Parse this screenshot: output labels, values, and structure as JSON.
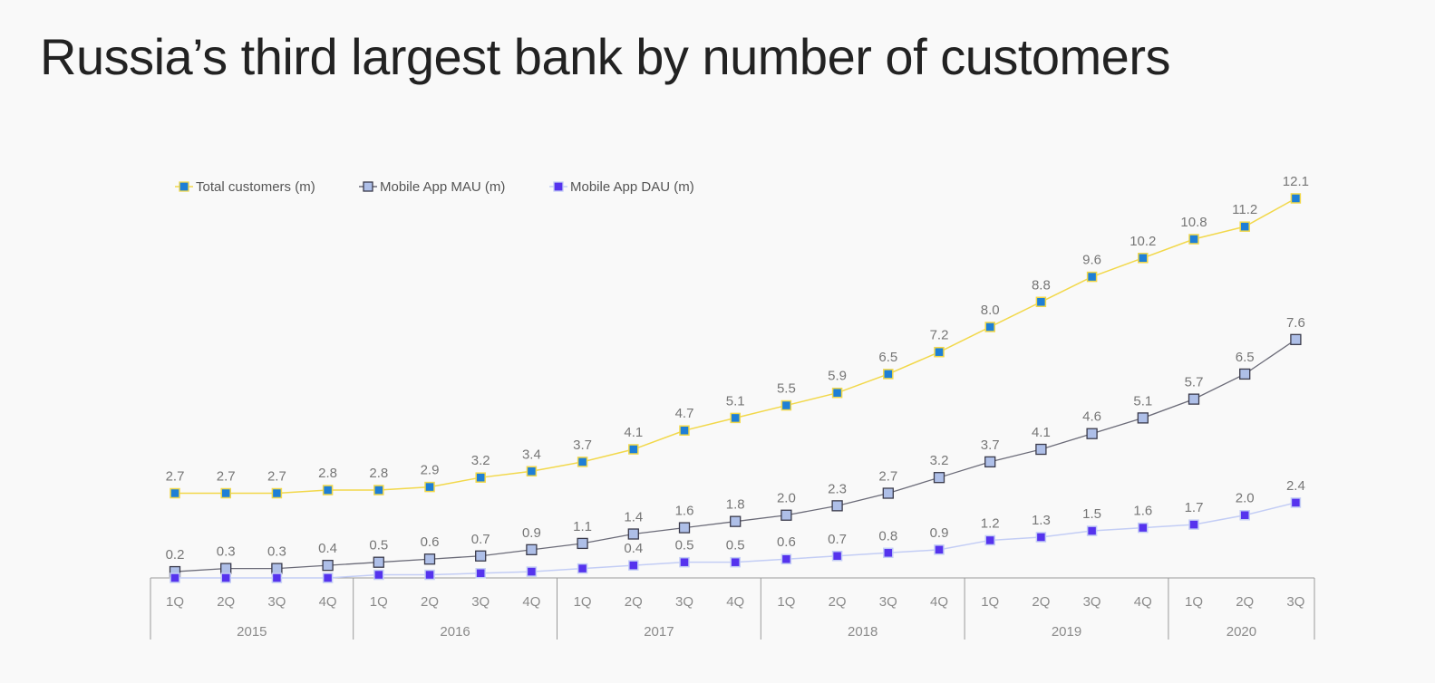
{
  "title": "Russia’s third largest bank by number of customers",
  "chart_data": {
    "type": "line",
    "title": "Russia’s third largest bank by number of customers",
    "categories": [
      "1Q",
      "2Q",
      "3Q",
      "4Q",
      "1Q",
      "2Q",
      "3Q",
      "4Q",
      "1Q",
      "2Q",
      "3Q",
      "4Q",
      "1Q",
      "2Q",
      "3Q",
      "4Q",
      "1Q",
      "2Q",
      "3Q",
      "4Q",
      "1Q",
      "2Q",
      "3Q"
    ],
    "category_groups": [
      {
        "label": "2015",
        "count": 4
      },
      {
        "label": "2016",
        "count": 4
      },
      {
        "label": "2017",
        "count": 4
      },
      {
        "label": "2018",
        "count": 4
      },
      {
        "label": "2019",
        "count": 4
      },
      {
        "label": "2020",
        "count": 3
      }
    ],
    "series": [
      {
        "name": "Total customers (m)",
        "line_color": "#f2d84a",
        "marker_fill": "#1e7fd6",
        "marker_stroke": "#f2d84a",
        "values": [
          2.7,
          2.7,
          2.7,
          2.8,
          2.8,
          2.9,
          3.2,
          3.4,
          3.7,
          4.1,
          4.7,
          5.1,
          5.5,
          5.9,
          6.5,
          7.2,
          8.0,
          8.8,
          9.6,
          10.2,
          10.8,
          11.2,
          12.1
        ],
        "labels": [
          "2.7",
          "2.7",
          "2.7",
          "2.8",
          "2.8",
          "2.9",
          "3.2",
          "3.4",
          "3.7",
          "4.1",
          "4.7",
          "5.1",
          "5.5",
          "5.9",
          "6.5",
          "7.2",
          "8.0",
          "8.8",
          "9.6",
          "10.2",
          "10.8",
          "11.2",
          "12.1"
        ]
      },
      {
        "name": "Mobile App MAU (m)",
        "line_color": "#6b6b78",
        "marker_fill": "#aebfe8",
        "marker_stroke": "#3a3a4a",
        "values": [
          0.2,
          0.3,
          0.3,
          0.4,
          0.5,
          0.6,
          0.7,
          0.9,
          1.1,
          1.4,
          1.6,
          1.8,
          2.0,
          2.3,
          2.7,
          3.2,
          3.7,
          4.1,
          4.6,
          5.1,
          5.7,
          6.5,
          7.6
        ],
        "labels": [
          "0.2",
          "0.3",
          "0.3",
          "0.4",
          "0.5",
          "0.6",
          "0.7",
          "0.9",
          "1.1",
          "1.4",
          "1.6",
          "1.8",
          "2.0",
          "2.3",
          "2.7",
          "3.2",
          "3.7",
          "4.1",
          "4.6",
          "5.1",
          "5.7",
          "6.5",
          "7.6"
        ]
      },
      {
        "name": "Mobile App DAU (m)",
        "line_color": "#c3cdf5",
        "marker_fill": "#5533ee",
        "marker_stroke": "#c3cdf5",
        "values": [
          0.0,
          0.0,
          0.0,
          0.0,
          0.1,
          0.1,
          0.15,
          0.2,
          0.3,
          0.4,
          0.5,
          0.5,
          0.6,
          0.7,
          0.8,
          0.9,
          1.2,
          1.3,
          1.5,
          1.6,
          1.7,
          2.0,
          2.4
        ],
        "labels": [
          "",
          "",
          "",
          "",
          "",
          "",
          "",
          "",
          "",
          "0.4",
          "0.5",
          "0.5",
          "0.6",
          "0.7",
          "0.8",
          "0.9",
          "1.2",
          "1.3",
          "1.5",
          "1.6",
          "1.7",
          "2.0",
          "2.4"
        ]
      }
    ],
    "ylim": [
      0,
      12.5
    ],
    "legend_position": "top-left",
    "grid": false
  }
}
